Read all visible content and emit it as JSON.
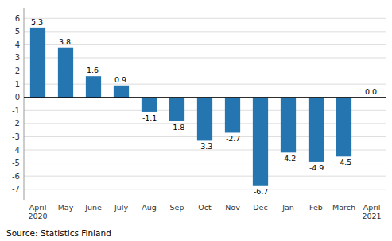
{
  "chart_data": {
    "type": "bar",
    "categories": [
      "April\n2020",
      "May",
      "June",
      "July",
      "Aug",
      "Sep",
      "Oct",
      "Nov",
      "Dec",
      "Jan",
      "Feb",
      "March",
      "April\n2021"
    ],
    "values": [
      5.3,
      3.8,
      1.6,
      0.9,
      -1.1,
      -1.8,
      -3.3,
      -2.7,
      -6.7,
      -4.2,
      -4.9,
      -4.5,
      0.0
    ],
    "value_labels": [
      "5.3",
      "3.8",
      "1.6",
      "0.9",
      "-1.1",
      "-1.8",
      "-3.3",
      "-2.7",
      "-6.7",
      "-4.2",
      "-4.9",
      "-4.5",
      "0.0"
    ],
    "color": "#2575b0",
    "ylim": [
      -7.8,
      6.8
    ],
    "yticks": [
      -7,
      -6,
      -5,
      -4,
      -3,
      -2,
      -1,
      0,
      1,
      2,
      3,
      4,
      5,
      6
    ],
    "grid": true,
    "data_labels": true,
    "annotations": [
      "Source: Statistics Finland"
    ]
  }
}
